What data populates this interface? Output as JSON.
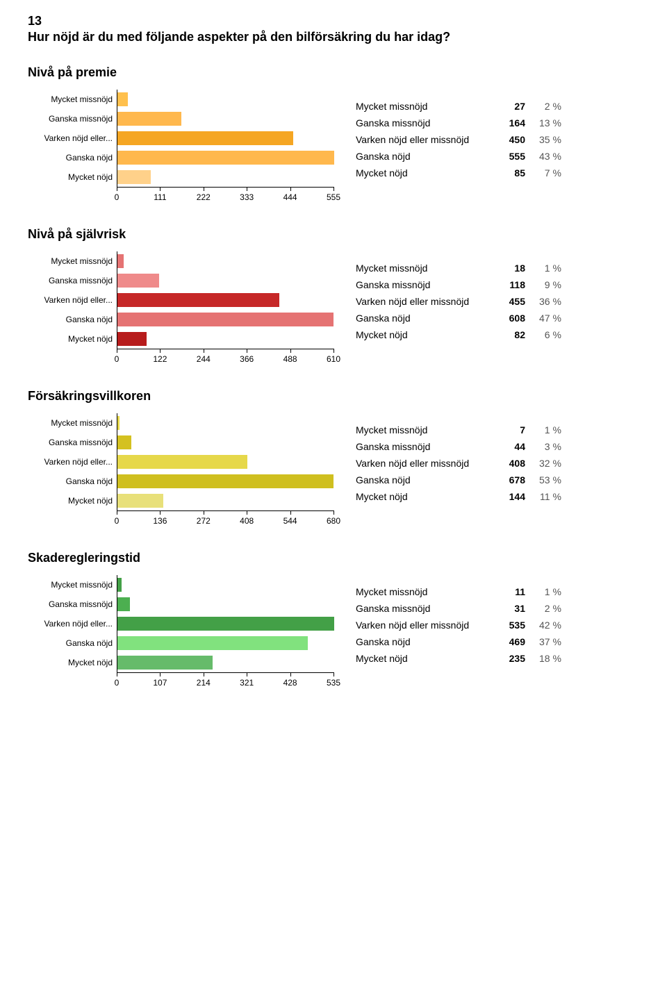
{
  "question": {
    "number": "13",
    "text": "Hur nöjd är du med följande aspekter på den bilförsäkring du har idag?"
  },
  "category_labels": [
    "Mycket missnöjd",
    "Ganska missnöjd",
    "Varken nöjd eller...",
    "Ganska nöjd",
    "Mycket nöjd"
  ],
  "table_row_labels": [
    "Mycket missnöjd",
    "Ganska missnöjd",
    "Varken nöjd eller missnöjd",
    "Ganska nöjd",
    "Mycket nöjd"
  ],
  "label_fontsize": 12,
  "axis_color": "#000000",
  "background_color": "#ffffff",
  "sections": [
    {
      "title": "Nivå på premie",
      "xmax": 555,
      "xtick_step": 111,
      "xticks": [
        0,
        111,
        222,
        333,
        444,
        555
      ],
      "bar_colors": [
        "#ffc04d",
        "#ffb84d",
        "#f5a623",
        "#ffb84d",
        "#ffd18a"
      ],
      "values": [
        27,
        164,
        450,
        555,
        85
      ],
      "percents": [
        "2 %",
        "13 %",
        "35 %",
        "43 %",
        "7 %"
      ]
    },
    {
      "title": "Nivå på självrisk",
      "xmax": 610,
      "xtick_step": 122,
      "xticks": [
        0,
        122,
        244,
        366,
        488,
        610
      ],
      "bar_colors": [
        "#e57373",
        "#ef8a8a",
        "#c62828",
        "#e57373",
        "#b71c1c"
      ],
      "values": [
        18,
        118,
        455,
        608,
        82
      ],
      "percents": [
        "1 %",
        "9 %",
        "36 %",
        "47 %",
        "6 %"
      ]
    },
    {
      "title": "Försäkringsvillkoren",
      "xmax": 680,
      "xtick_step": 136,
      "xticks": [
        0,
        136,
        272,
        408,
        544,
        680
      ],
      "bar_colors": [
        "#e6d84a",
        "#d4c120",
        "#e6d84a",
        "#cfbf1f",
        "#e8e07a"
      ],
      "values": [
        7,
        44,
        408,
        678,
        144
      ],
      "percents": [
        "1 %",
        "3 %",
        "32 %",
        "53 %",
        "11 %"
      ]
    },
    {
      "title": "Skaderegleringstid",
      "xmax": 535,
      "xtick_step": 107,
      "xticks": [
        0,
        107,
        214,
        321,
        428,
        535
      ],
      "bar_colors": [
        "#43a047",
        "#4caf50",
        "#43a047",
        "#81e27e",
        "#66bb6a"
      ],
      "values": [
        11,
        31,
        535,
        469,
        235
      ],
      "percents": [
        "1 %",
        "2 %",
        "42 %",
        "37 %",
        "18 %"
      ]
    }
  ]
}
